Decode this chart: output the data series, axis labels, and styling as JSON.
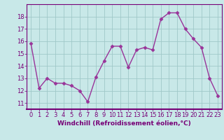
{
  "x": [
    0,
    1,
    2,
    3,
    4,
    5,
    6,
    7,
    8,
    9,
    10,
    11,
    12,
    13,
    14,
    15,
    16,
    17,
    18,
    19,
    20,
    21,
    22,
    23
  ],
  "y": [
    15.8,
    12.2,
    13.0,
    12.6,
    12.6,
    12.4,
    12.0,
    11.1,
    13.1,
    14.4,
    15.6,
    15.6,
    13.9,
    15.3,
    15.5,
    15.3,
    17.8,
    18.3,
    18.3,
    17.0,
    16.2,
    15.5,
    13.0,
    11.6
  ],
  "line_color": "#993399",
  "marker": "D",
  "marker_size": 2.5,
  "linewidth": 1.0,
  "bg_color": "#c8e8e8",
  "grid_color": "#a0c8c8",
  "xlabel": "Windchill (Refroidissement éolien,°C)",
  "ylim": [
    10.5,
    19.0
  ],
  "xlim": [
    -0.5,
    23.5
  ],
  "yticks": [
    11,
    12,
    13,
    14,
    15,
    16,
    17,
    18
  ],
  "xticks": [
    0,
    1,
    2,
    3,
    4,
    5,
    6,
    7,
    8,
    9,
    10,
    11,
    12,
    13,
    14,
    15,
    16,
    17,
    18,
    19,
    20,
    21,
    22,
    23
  ],
  "tick_color": "#770077",
  "label_fontsize": 6.5,
  "tick_fontsize": 6,
  "spine_color": "#770077"
}
